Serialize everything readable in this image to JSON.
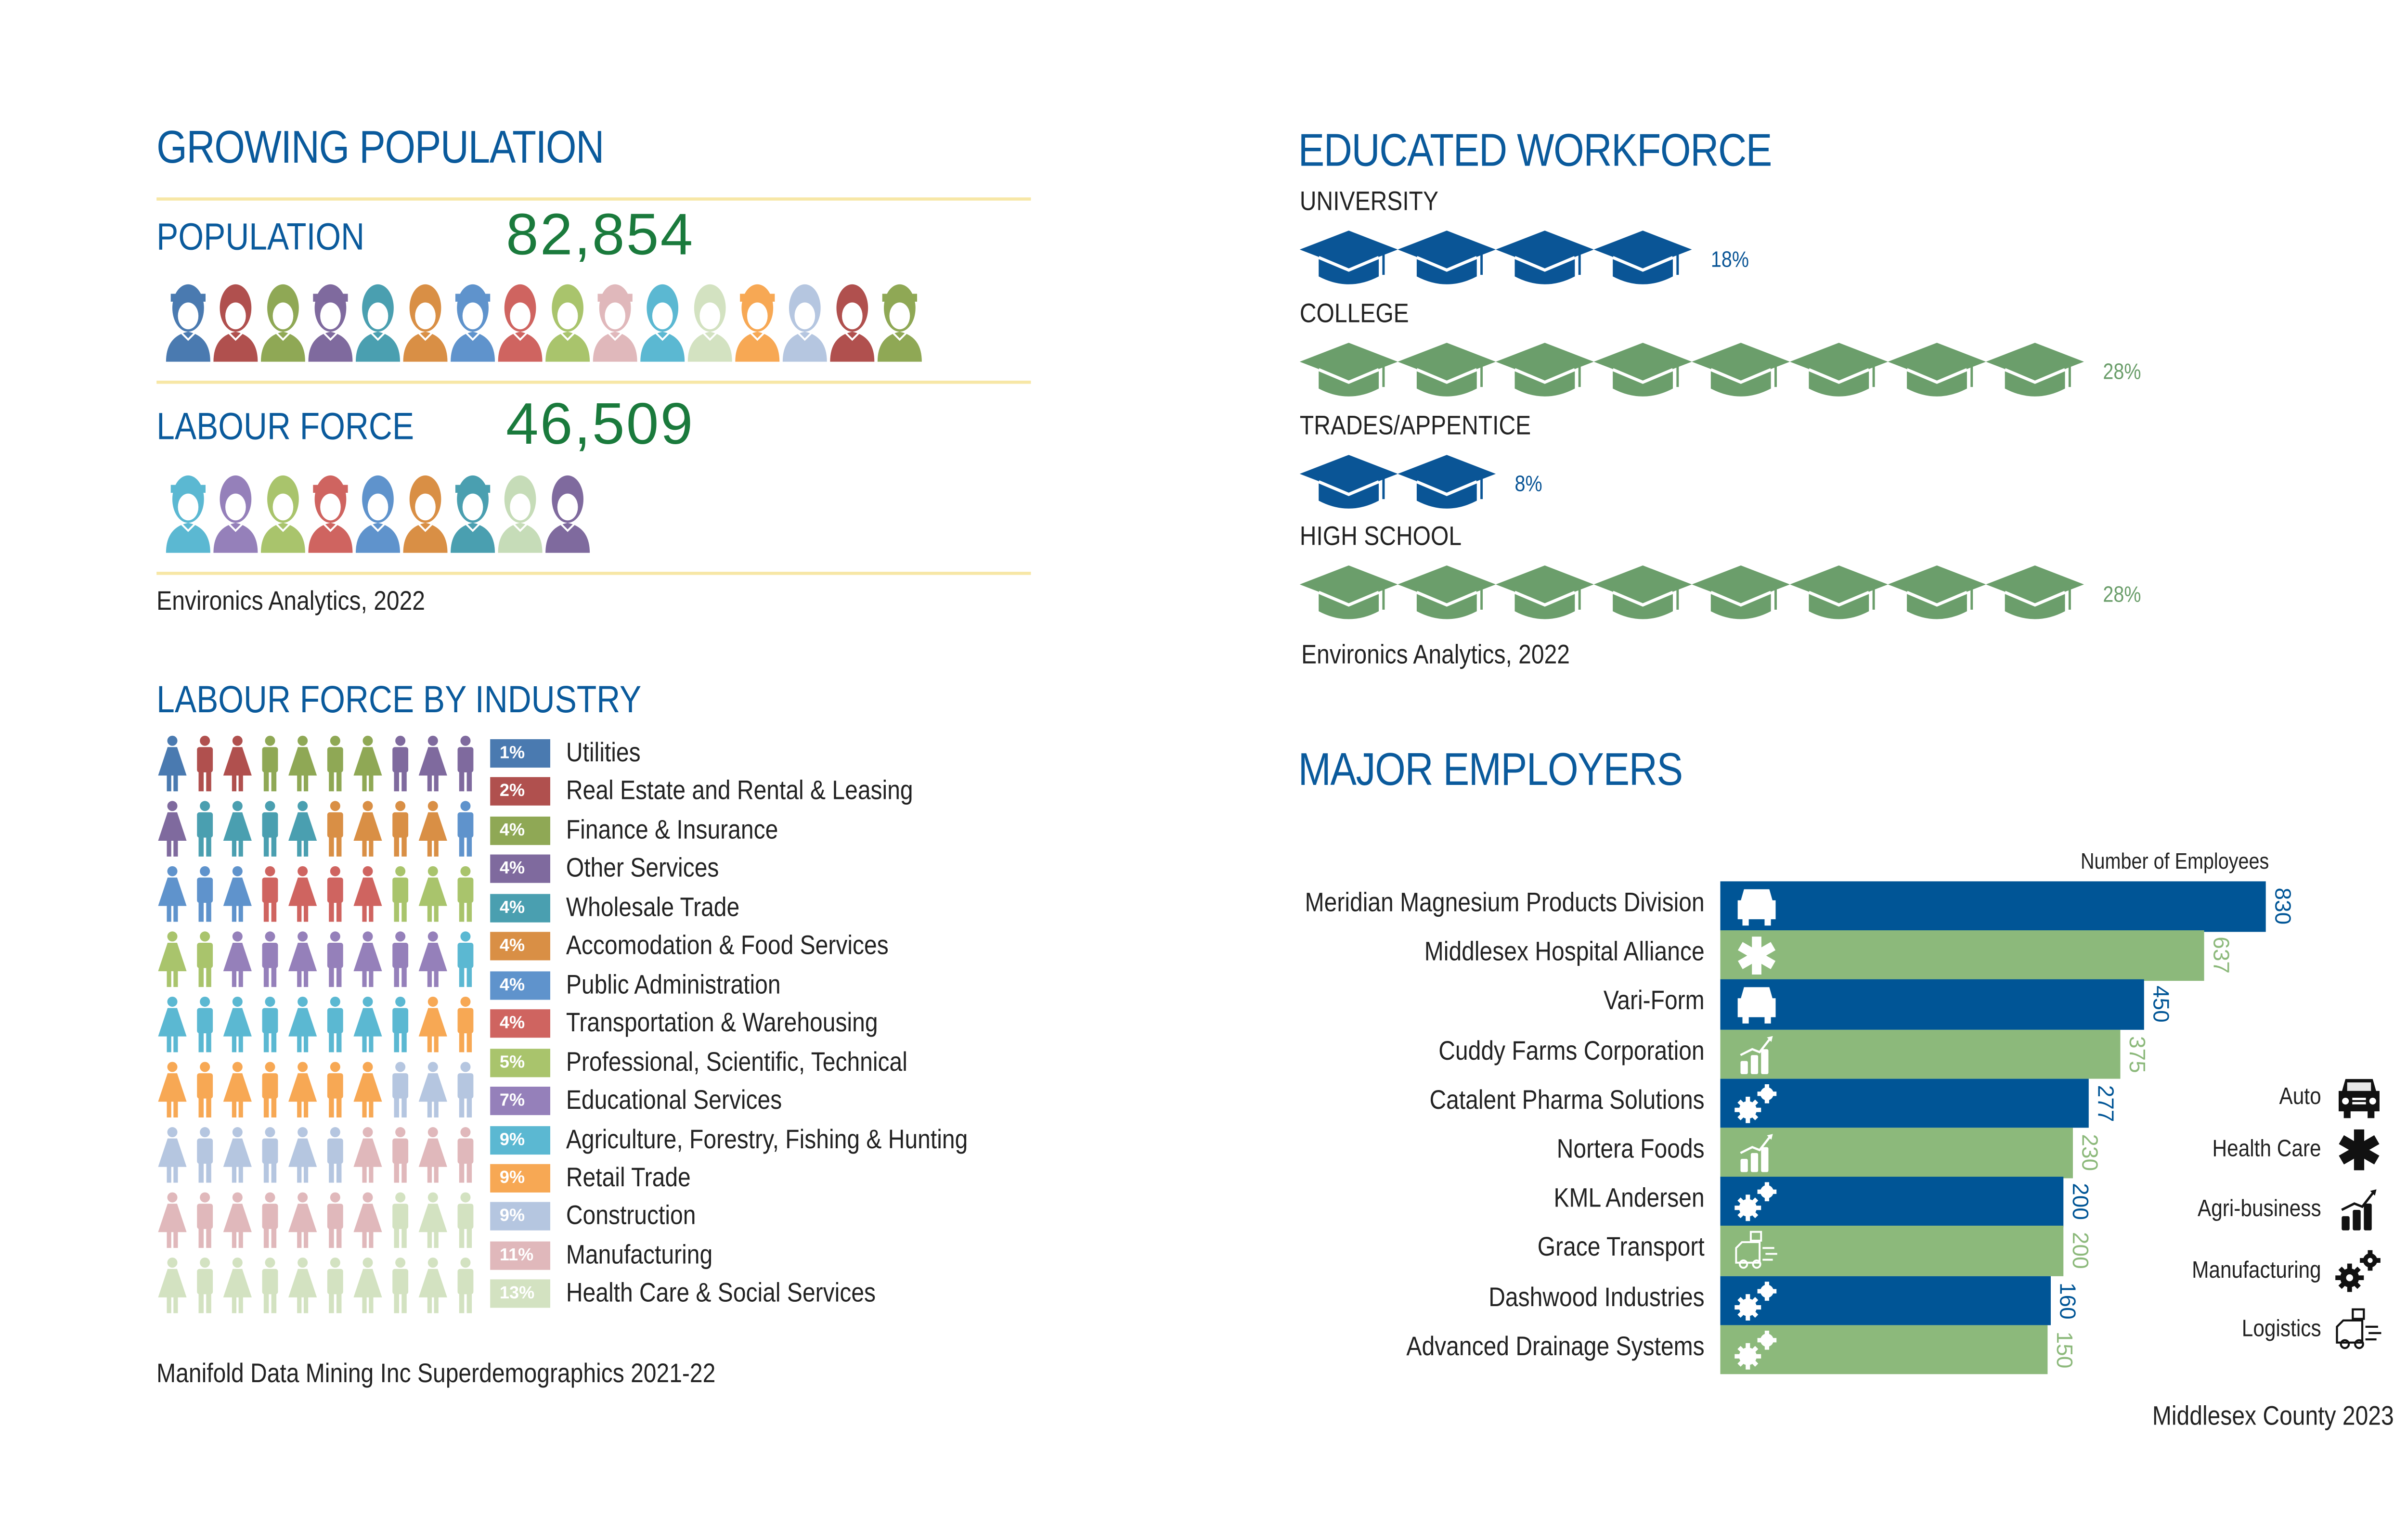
{
  "population_section": {
    "title": "GROWING POPULATION",
    "population_label": "POPULATION",
    "population_value": "82,854",
    "population_icon_colors": [
      "#4a7ab0",
      "#b0504e",
      "#8fa855",
      "#7f6a9e",
      "#4a9fb0",
      "#d98f45",
      "#5f93cc",
      "#cf6460",
      "#a9c46c",
      "#e0b8bb",
      "#5bb8d2",
      "#d3e2c1",
      "#f7a854",
      "#b5c6e0",
      "#b0504e",
      "#8fa855"
    ],
    "labour_label": "LABOUR FORCE",
    "labour_value": "46,509",
    "labour_icon_colors": [
      "#5bb8d2",
      "#9580ba",
      "#a9c46c",
      "#cf6460",
      "#5f93cc",
      "#d98f45",
      "#4a9fb0",
      "#c6dcb8",
      "#7f6a9e"
    ],
    "source": "Environics Analytics, 2022"
  },
  "industry_section": {
    "title": "LABOUR FORCE BY INDUSTRY",
    "source": "Manifold Data Mining Inc Superdemographics 2021-22"
  },
  "education_section": {
    "title": "EDUCATED WORKFORCE",
    "source": "Environics Analytics, 2022"
  },
  "employers_section": {
    "title": "MAJOR EMPLOYERS",
    "axis_label": "Number of Employees",
    "source": "Middlesex County 2023",
    "bar_colors": [
      "#005596",
      "#8cb97b"
    ],
    "legend": [
      {
        "label": "Auto",
        "icon": "car-icon"
      },
      {
        "label": "Health Care",
        "icon": "star-of-life-icon"
      },
      {
        "label": "Agri-business",
        "icon": "agri-growth-icon"
      },
      {
        "label": "Manufacturing",
        "icon": "gears-icon"
      },
      {
        "label": "Logistics",
        "icon": "delivery-truck-icon"
      }
    ]
  },
  "chart_data": [
    {
      "type": "bar",
      "title": "MAJOR EMPLOYERS",
      "xlabel": "Number of Employees",
      "orientation": "horizontal",
      "categories": [
        "Meridian Magnesium Products Division",
        "Middlesex Hospital Alliance",
        "Vari-Form",
        "Cuddy Farms Corporation",
        "Catalent Pharma Solutions",
        "Nortera Foods",
        "KML Andersen",
        "Grace Transport",
        "Dashwood Industries",
        "Advanced Drainage Systems"
      ],
      "values": [
        830,
        637,
        450,
        375,
        277,
        230,
        200,
        200,
        160,
        150
      ],
      "value_labels": [
        "830",
        "637",
        "450",
        "375",
        "277",
        "230",
        "200",
        "200",
        "160",
        "150"
      ],
      "sectors": [
        "Auto",
        "Health Care",
        "Auto",
        "Agri-business",
        "Manufacturing",
        "Agri-business",
        "Manufacturing",
        "Logistics",
        "Manufacturing",
        "Manufacturing"
      ]
    },
    {
      "type": "table",
      "title": "LABOUR FORCE BY INDUSTRY",
      "categories": [
        "Utilities",
        "Real Estate and Rental & Leasing",
        "Finance & Insurance",
        "Other Services",
        "Wholesale Trade",
        "Accomodation & Food Services",
        "Public Administration",
        "Transportation & Warehousing",
        "Professional, Scientific, Technical",
        "Educational Services",
        "Agriculture, Forestry, Fishing & Hunting",
        "Retail Trade",
        "Construction",
        "Manufacturing",
        "Health Care & Social Services"
      ],
      "values": [
        1,
        2,
        4,
        4,
        4,
        4,
        4,
        4,
        5,
        7,
        9,
        9,
        9,
        11,
        13
      ],
      "value_labels": [
        "1%",
        "2%",
        "4%",
        "4%",
        "4%",
        "4%",
        "4%",
        "4%",
        "5%",
        "7%",
        "9%",
        "9%",
        "9%",
        "11%",
        "13%"
      ],
      "colors": [
        "#4a7ab0",
        "#b0504e",
        "#8fa855",
        "#7f6a9e",
        "#4a9fb0",
        "#d98f45",
        "#5f93cc",
        "#cf6460",
        "#a9c46c",
        "#9580ba",
        "#5bb8d2",
        "#f7a854",
        "#b5c6e0",
        "#e0b8bb",
        "#d3e2c1"
      ]
    },
    {
      "type": "bar",
      "title": "EDUCATED WORKFORCE",
      "categories": [
        "UNIVERSITY",
        "COLLEGE",
        "TRADES/APPENTICE",
        "HIGH SCHOOL"
      ],
      "values": [
        18,
        28,
        8,
        28
      ],
      "value_labels": [
        "18%",
        "28%",
        "8%",
        "28%"
      ],
      "icon_counts": [
        4,
        8,
        2,
        8
      ],
      "colors": [
        "#0a5596",
        "#6b9e6b",
        "#0a5596",
        "#6b9e6b"
      ]
    }
  ]
}
